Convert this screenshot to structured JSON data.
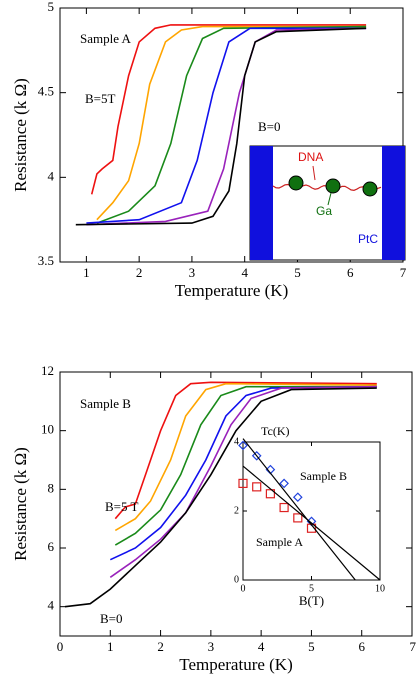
{
  "chart_data": [
    {
      "type": "line",
      "xlabel": "Temperature (K)",
      "ylabel": "Resistance (k Ω)",
      "xlim": [
        0.5,
        7
      ],
      "ylim": [
        3.5,
        5
      ],
      "xticks": [
        1,
        2,
        3,
        4,
        5,
        6,
        7
      ],
      "yticks": [
        3.5,
        4,
        4.5,
        5
      ],
      "series": [
        {
          "color": "#ee1111",
          "x": [
            1.1,
            1.2,
            1.3,
            1.5,
            1.6,
            1.8,
            2.0,
            2.3,
            2.6,
            6.3
          ],
          "values": [
            3.9,
            4.02,
            4.05,
            4.1,
            4.3,
            4.6,
            4.8,
            4.88,
            4.9,
            4.9
          ]
        },
        {
          "color": "#ffa500",
          "x": [
            1.2,
            1.5,
            1.8,
            2.0,
            2.2,
            2.5,
            2.8,
            3.2,
            6.3
          ],
          "values": [
            3.75,
            3.85,
            3.98,
            4.2,
            4.55,
            4.8,
            4.87,
            4.89,
            4.89
          ]
        },
        {
          "color": "#1a8a1a",
          "x": [
            1.2,
            1.8,
            2.3,
            2.6,
            2.9,
            3.2,
            3.6,
            6.3
          ],
          "values": [
            3.73,
            3.8,
            3.95,
            4.2,
            4.6,
            4.82,
            4.88,
            4.89
          ]
        },
        {
          "color": "#1111ee",
          "x": [
            1.0,
            2.0,
            2.8,
            3.1,
            3.4,
            3.7,
            4.1,
            6.3
          ],
          "values": [
            3.73,
            3.75,
            3.85,
            4.1,
            4.5,
            4.8,
            4.88,
            4.88
          ]
        },
        {
          "color": "#9922bb",
          "x": [
            1.0,
            2.5,
            3.3,
            3.6,
            3.9,
            4.2,
            4.6,
            6.3
          ],
          "values": [
            3.72,
            3.74,
            3.8,
            4.05,
            4.5,
            4.8,
            4.87,
            4.88
          ]
        },
        {
          "color": "#000000",
          "x": [
            0.8,
            3.0,
            3.4,
            3.7,
            3.85,
            4.0,
            4.2,
            4.6,
            6.3
          ],
          "values": [
            3.72,
            3.73,
            3.77,
            3.92,
            4.2,
            4.6,
            4.8,
            4.86,
            4.88
          ]
        }
      ],
      "annotations": [
        "Sample A",
        "B=5T",
        "B=0"
      ],
      "inset": {
        "type": "diagram",
        "labels": [
          "DNA",
          "Ga",
          "PtC"
        ]
      }
    },
    {
      "type": "line",
      "xlabel": "Temperature (K)",
      "ylabel": "Resistance (k Ω)",
      "xlim": [
        0,
        7
      ],
      "ylim": [
        3,
        12
      ],
      "xticks": [
        0,
        1,
        2,
        3,
        4,
        5,
        6,
        7
      ],
      "yticks": [
        4,
        6,
        8,
        10,
        12
      ],
      "series": [
        {
          "color": "#ee1111",
          "x": [
            1.1,
            1.3,
            1.5,
            1.7,
            2.0,
            2.3,
            2.6,
            3.0,
            6.3
          ],
          "values": [
            7.0,
            7.4,
            7.5,
            8.5,
            10.0,
            11.2,
            11.6,
            11.65,
            11.6
          ]
        },
        {
          "color": "#ffa500",
          "x": [
            1.1,
            1.5,
            1.8,
            2.2,
            2.5,
            2.9,
            3.3,
            6.3
          ],
          "values": [
            6.6,
            7.0,
            7.6,
            9.0,
            10.5,
            11.4,
            11.6,
            11.55
          ]
        },
        {
          "color": "#1a8a1a",
          "x": [
            1.1,
            1.5,
            2.0,
            2.4,
            2.8,
            3.2,
            3.7,
            6.3
          ],
          "values": [
            6.1,
            6.5,
            7.3,
            8.5,
            10.2,
            11.2,
            11.5,
            11.5
          ]
        },
        {
          "color": "#1111ee",
          "x": [
            1.0,
            1.5,
            2.0,
            2.5,
            2.9,
            3.3,
            3.7,
            4.2,
            6.3
          ],
          "values": [
            5.6,
            6.0,
            6.7,
            7.8,
            9.0,
            10.5,
            11.2,
            11.45,
            11.5
          ]
        },
        {
          "color": "#9922bb",
          "x": [
            1.0,
            1.5,
            2.0,
            2.5,
            3.0,
            3.4,
            3.8,
            4.4,
            6.3
          ],
          "values": [
            5.0,
            5.6,
            6.3,
            7.2,
            8.8,
            10.2,
            11.1,
            11.45,
            11.5
          ]
        },
        {
          "color": "#000000",
          "x": [
            0.1,
            0.6,
            1.0,
            1.5,
            2.0,
            2.5,
            3.0,
            3.5,
            4.0,
            4.6,
            6.3
          ],
          "values": [
            4.0,
            4.1,
            4.6,
            5.4,
            6.2,
            7.2,
            8.5,
            10.0,
            11.0,
            11.4,
            11.45
          ]
        }
      ],
      "annotations": [
        "Sample B",
        "B=5 T",
        "B=0"
      ],
      "inset": {
        "type": "scatter",
        "xlabel": "B(T)",
        "ylabel": "Tc(K)",
        "xlim": [
          0,
          10
        ],
        "ylim": [
          0,
          4
        ],
        "xticks": [
          0,
          5,
          10
        ],
        "yticks": [
          0,
          2,
          4
        ],
        "series": [
          {
            "name": "Sample B",
            "color": "#2244dd",
            "marker": "diamond",
            "x": [
              0,
              1,
              2,
              3,
              4,
              5
            ],
            "values": [
              3.9,
              3.6,
              3.2,
              2.8,
              2.4,
              1.7
            ]
          },
          {
            "name": "Sample A",
            "color": "#dd2222",
            "marker": "square",
            "x": [
              0,
              1,
              2,
              3,
              4,
              5
            ],
            "values": [
              2.8,
              2.7,
              2.5,
              2.1,
              1.8,
              1.5
            ]
          },
          {
            "color": "#000000",
            "x": [
              0,
              8.2
            ],
            "values": [
              4.1,
              0
            ]
          },
          {
            "color": "#000000",
            "x": [
              0,
              10
            ],
            "values": [
              3.3,
              0
            ]
          }
        ]
      }
    }
  ]
}
